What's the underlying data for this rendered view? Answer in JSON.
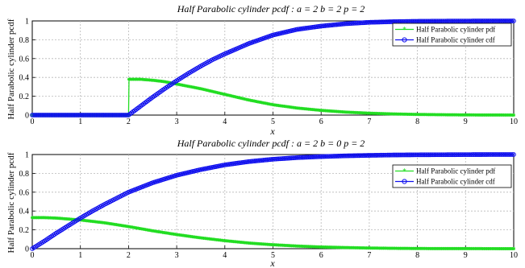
{
  "chart_data": [
    {
      "type": "line",
      "title": "Half Parabolic cylinder pcdf : a = 2 b = 2 p = 2",
      "xlabel": "x",
      "ylabel": "Half Parabolic cylinder pcdf",
      "xlim": [
        0,
        10
      ],
      "ylim": [
        0,
        1
      ],
      "xticks": [
        "0",
        "1",
        "2",
        "3",
        "4",
        "5",
        "6",
        "7",
        "8",
        "9",
        "10"
      ],
      "yticks": [
        "0",
        "0.2",
        "0.4",
        "0.6",
        "0.8",
        "1"
      ],
      "grid": true,
      "legend_position": "top-right",
      "series": [
        {
          "name": "Half Parabolic cylinder pdf",
          "color": "#22dd22",
          "marker": "star",
          "x": [
            0,
            1,
            2,
            2.01,
            2.25,
            2.5,
            2.75,
            3,
            3.25,
            3.5,
            3.75,
            4,
            4.5,
            5,
            5.5,
            6,
            6.5,
            7,
            7.5,
            8,
            8.5,
            9,
            9.5,
            10
          ],
          "y": [
            0,
            0,
            0,
            0.38,
            0.38,
            0.37,
            0.355,
            0.33,
            0.305,
            0.28,
            0.25,
            0.22,
            0.16,
            0.11,
            0.075,
            0.05,
            0.032,
            0.02,
            0.012,
            0.007,
            0.004,
            0.002,
            0.001,
            0.0005
          ]
        },
        {
          "name": "Half Parabolic cylinder cdf",
          "color": "#1010ee",
          "marker": "circle",
          "x": [
            0,
            1,
            2,
            2.25,
            2.5,
            2.75,
            3,
            3.25,
            3.5,
            3.75,
            4,
            4.5,
            5,
            5.5,
            6,
            6.5,
            7,
            7.5,
            8,
            8.5,
            9,
            9.5,
            10
          ],
          "y": [
            0,
            0,
            0,
            0.095,
            0.19,
            0.28,
            0.365,
            0.445,
            0.52,
            0.59,
            0.65,
            0.76,
            0.85,
            0.91,
            0.945,
            0.97,
            0.985,
            0.992,
            0.996,
            0.998,
            0.999,
            1.0,
            1.0
          ]
        }
      ]
    },
    {
      "type": "line",
      "title": "Half Parabolic cylinder pcdf : a = 2 b = 0 p = 2",
      "xlabel": "x",
      "ylabel": "Half Parabolic cylinder pcdf",
      "xlim": [
        0,
        10
      ],
      "ylim": [
        0,
        1
      ],
      "xticks": [
        "0",
        "1",
        "2",
        "3",
        "4",
        "5",
        "6",
        "7",
        "8",
        "9",
        "10"
      ],
      "yticks": [
        "0",
        "0.2",
        "0.4",
        "0.6",
        "0.8",
        "1"
      ],
      "grid": true,
      "legend_position": "top-right",
      "series": [
        {
          "name": "Half Parabolic cylinder pdf",
          "color": "#22dd22",
          "marker": "star",
          "x": [
            0,
            0.25,
            0.5,
            0.75,
            1,
            1.25,
            1.5,
            1.75,
            2,
            2.5,
            3,
            3.5,
            4,
            4.5,
            5,
            5.5,
            6,
            6.5,
            7,
            7.5,
            8,
            8.5,
            9,
            9.5,
            10
          ],
          "y": [
            0.33,
            0.33,
            0.325,
            0.315,
            0.305,
            0.29,
            0.275,
            0.255,
            0.235,
            0.19,
            0.15,
            0.115,
            0.085,
            0.06,
            0.042,
            0.028,
            0.018,
            0.012,
            0.007,
            0.004,
            0.002,
            0.001,
            0.0008,
            0.0004,
            0.0002
          ]
        },
        {
          "name": "Half Parabolic cylinder cdf",
          "color": "#1010ee",
          "marker": "circle",
          "x": [
            0,
            0.25,
            0.5,
            0.75,
            1,
            1.25,
            1.5,
            1.75,
            2,
            2.5,
            3,
            3.5,
            4,
            4.5,
            5,
            5.5,
            6,
            6.5,
            7,
            7.5,
            8,
            8.5,
            9,
            9.5,
            10
          ],
          "y": [
            0,
            0.08,
            0.165,
            0.245,
            0.325,
            0.4,
            0.47,
            0.535,
            0.6,
            0.7,
            0.78,
            0.84,
            0.89,
            0.925,
            0.95,
            0.967,
            0.978,
            0.986,
            0.991,
            0.995,
            0.997,
            0.998,
            0.999,
            1.0,
            1.0
          ]
        }
      ]
    }
  ]
}
